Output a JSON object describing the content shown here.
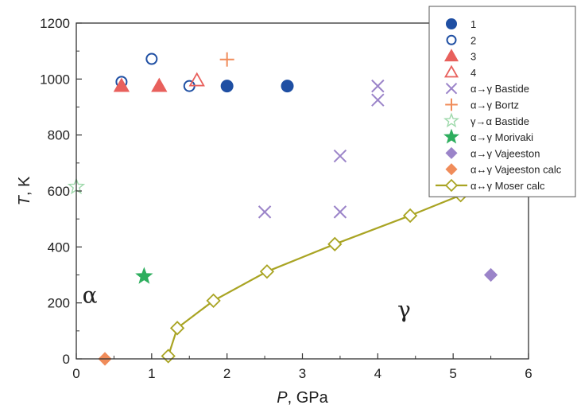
{
  "chart_data": {
    "type": "scatter",
    "xlabel_var": "P",
    "xlabel_unit": ", GPa",
    "ylabel_var": "T",
    "ylabel_unit": ", K",
    "xlim": [
      0,
      6
    ],
    "ylim": [
      0,
      1200
    ],
    "xticks": [
      0,
      1,
      2,
      3,
      4,
      5,
      6
    ],
    "yticks": [
      0,
      200,
      400,
      600,
      800,
      1000,
      1200
    ],
    "phase_labels": [
      {
        "text": "α",
        "x": 0.18,
        "y": 200
      },
      {
        "text": "γ",
        "x": 4.35,
        "y": 150
      }
    ],
    "series": [
      {
        "name": "1",
        "marker": "circle-filled",
        "color": "#1f4fa3",
        "points": [
          [
            2.0,
            975
          ],
          [
            2.8,
            975
          ]
        ]
      },
      {
        "name": "2",
        "marker": "circle-open",
        "color": "#1f4fa3",
        "points": [
          [
            0.6,
            990
          ],
          [
            1.0,
            1072
          ],
          [
            1.5,
            975
          ]
        ]
      },
      {
        "name": "3",
        "marker": "triangle-filled",
        "color": "#e8605c",
        "points": [
          [
            0.6,
            975
          ],
          [
            1.1,
            975
          ]
        ]
      },
      {
        "name": "4",
        "marker": "triangle-open",
        "color": "#e8605c",
        "points": [
          [
            1.6,
            995
          ]
        ]
      },
      {
        "name": "α→γ Bastide",
        "marker": "x",
        "color": "#9b84c9",
        "points": [
          [
            2.5,
            525
          ],
          [
            3.5,
            525
          ],
          [
            3.5,
            725
          ],
          [
            4.0,
            925
          ],
          [
            4.0,
            975
          ]
        ]
      },
      {
        "name": "α→γ Bortz",
        "marker": "plus",
        "color": "#f08c5a",
        "points": [
          [
            2.0,
            1070
          ]
        ]
      },
      {
        "name": "γ→α Bastide",
        "marker": "star-open",
        "color": "#9ed9ab",
        "points": [
          [
            0.0,
            615
          ]
        ]
      },
      {
        "name": "α→γ Morivaki",
        "marker": "star-filled",
        "color": "#2eae5e",
        "points": [
          [
            0.9,
            295
          ]
        ]
      },
      {
        "name": "α→γ Vajeeston",
        "marker": "diamond-filled",
        "color": "#9b84c9",
        "points": [
          [
            5.5,
            300
          ]
        ]
      },
      {
        "name": "α↔γ Vajeeston calc",
        "marker": "diamond-filled",
        "color": "#f08c5a",
        "points": [
          [
            0.38,
            0
          ]
        ]
      },
      {
        "name": "α↔γ Moser calc",
        "marker": "diamond-open-line",
        "color": "#a9a423",
        "points": [
          [
            1.22,
            10
          ],
          [
            1.34,
            110
          ],
          [
            1.82,
            208
          ],
          [
            2.53,
            312
          ],
          [
            3.43,
            410
          ],
          [
            4.43,
            512
          ],
          [
            5.1,
            585
          ]
        ]
      }
    ],
    "legend_placement": "top-right",
    "grid": false
  }
}
